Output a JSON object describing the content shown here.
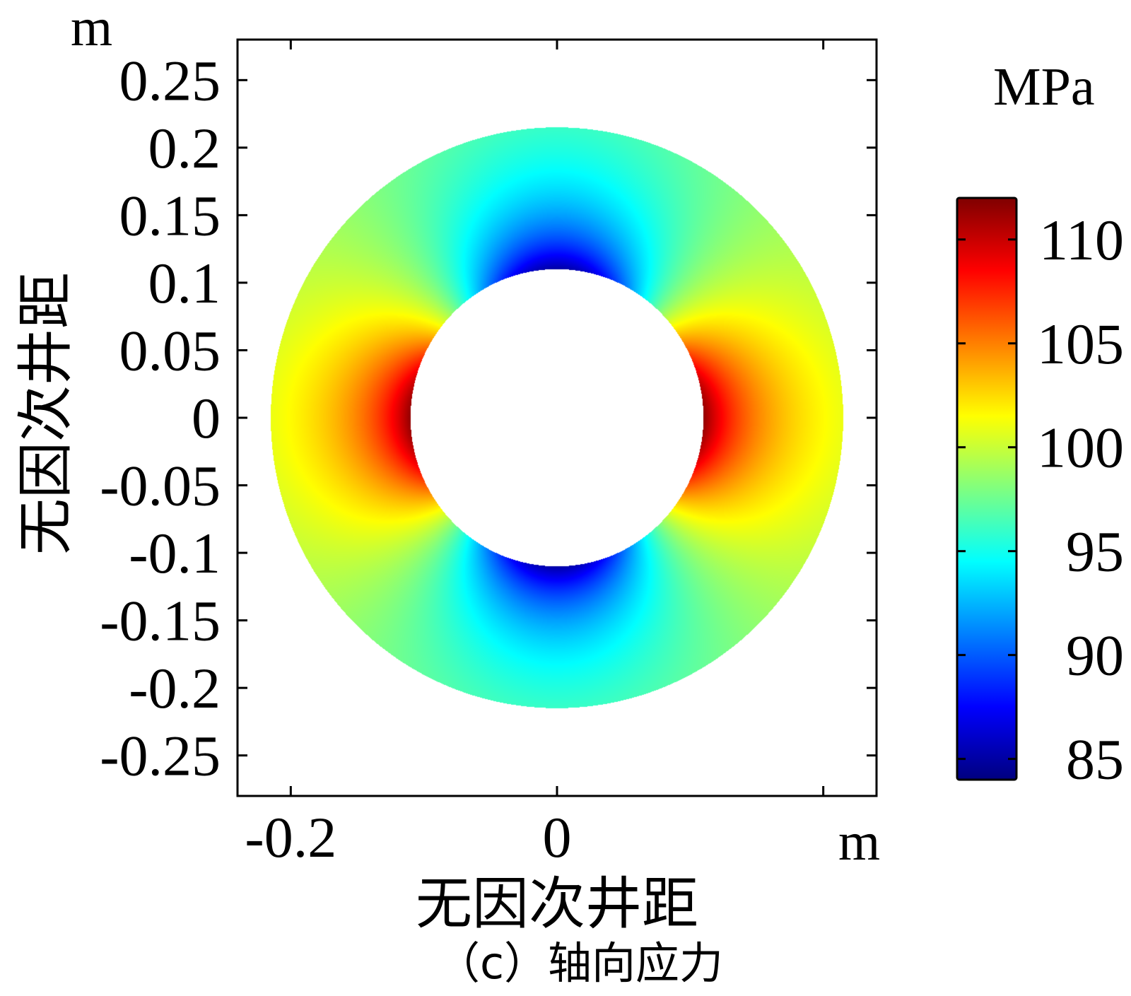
{
  "chart_data": {
    "type": "heatmap",
    "description_units": "annulus stress field",
    "title": "",
    "caption": "（c）轴向应力",
    "xlabel": "无因次井距",
    "ylabel": "无因次井距",
    "x_unit": "m",
    "y_unit": "m",
    "xlim": [
      -0.24,
      0.24
    ],
    "ylim": [
      -0.28,
      0.28
    ],
    "x_ticks": [
      {
        "value": -0.2,
        "label": "-0.2"
      },
      {
        "value": 0,
        "label": "0"
      }
    ],
    "x_tick_marks": [
      -0.2,
      0,
      0.2
    ],
    "y_ticks": [
      {
        "value": 0.25,
        "label": "0.25"
      },
      {
        "value": 0.2,
        "label": "0.2"
      },
      {
        "value": 0.15,
        "label": "0.15"
      },
      {
        "value": 0.1,
        "label": "0.1"
      },
      {
        "value": 0.05,
        "label": "0.05"
      },
      {
        "value": 0,
        "label": "0"
      },
      {
        "value": -0.05,
        "label": "-0.05"
      },
      {
        "value": -0.1,
        "label": "-0.1"
      },
      {
        "value": -0.15,
        "label": "-0.15"
      },
      {
        "value": -0.2,
        "label": "-0.2"
      },
      {
        "value": -0.25,
        "label": "-0.25"
      }
    ],
    "inner_radius": 0.11,
    "outer_radius": 0.215,
    "colorbar": {
      "unit": "MPa",
      "min": 84,
      "max": 112,
      "ticks": [
        110,
        105,
        100,
        95,
        90,
        85
      ],
      "colormap": "jet"
    },
    "field_samples": [
      {
        "location": "inner edge, 0°/180°",
        "value": 111.5
      },
      {
        "location": "outer edge, 0°/180°",
        "value": 101
      },
      {
        "location": "inner edge, 90°/270°",
        "value": 85
      },
      {
        "location": "outer edge, 90°/270°",
        "value": 96
      },
      {
        "location": "45° diagonals",
        "value": 98.5
      }
    ]
  }
}
